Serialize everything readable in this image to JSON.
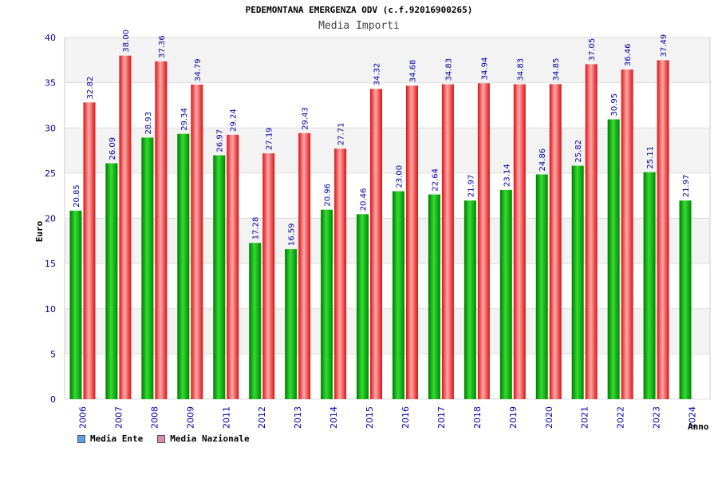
{
  "chart_data": {
    "type": "bar",
    "title": "PEDEMONTANA EMERGENZA ODV (c.f.92016900265)",
    "subtitle": "Media Importi",
    "xlabel": "Anno",
    "ylabel": "Euro",
    "ylim": [
      0,
      40
    ],
    "yticks": [
      0,
      5,
      10,
      15,
      20,
      25,
      30,
      35,
      40
    ],
    "grid": true,
    "legend_position": "bottom-left",
    "categories": [
      "2006",
      "2007",
      "2008",
      "2009",
      "2011",
      "2012",
      "2013",
      "2014",
      "2015",
      "2016",
      "2017",
      "2018",
      "2019",
      "2020",
      "2021",
      "2022",
      "2023",
      "2024"
    ],
    "series": [
      {
        "name": "Media Ente",
        "color": "#22aa22",
        "legend_color": "#5aa0e6",
        "values": [
          20.85,
          26.09,
          28.93,
          29.34,
          26.97,
          17.28,
          16.59,
          20.96,
          20.46,
          23.0,
          22.64,
          21.97,
          23.14,
          24.86,
          25.82,
          30.95,
          25.11,
          21.97
        ],
        "labels": [
          "20.85",
          "26.09",
          "28.93",
          "29.34",
          "26.97",
          "17.28",
          "16.59",
          "20.96",
          "20.46",
          "23.00",
          "22.64",
          "21.97",
          "23.14",
          "24.86",
          "25.82",
          "30.95",
          "25.11",
          "21.97"
        ]
      },
      {
        "name": "Media Nazionale",
        "color": "#ee3333",
        "legend_color": "#d98ab0",
        "values": [
          32.82,
          38.0,
          37.36,
          34.79,
          29.24,
          27.19,
          29.43,
          27.71,
          34.32,
          34.68,
          34.83,
          34.94,
          34.83,
          34.85,
          37.05,
          36.46,
          37.49,
          null
        ],
        "labels": [
          "32.82",
          "38.00",
          "37.36",
          "34.79",
          "29.24",
          "27.19",
          "29.43",
          "27.71",
          "34.32",
          "34.68",
          "34.83",
          "34.94",
          "34.83",
          "34.85",
          "37.05",
          "36.46",
          "37.49",
          ""
        ]
      }
    ]
  }
}
